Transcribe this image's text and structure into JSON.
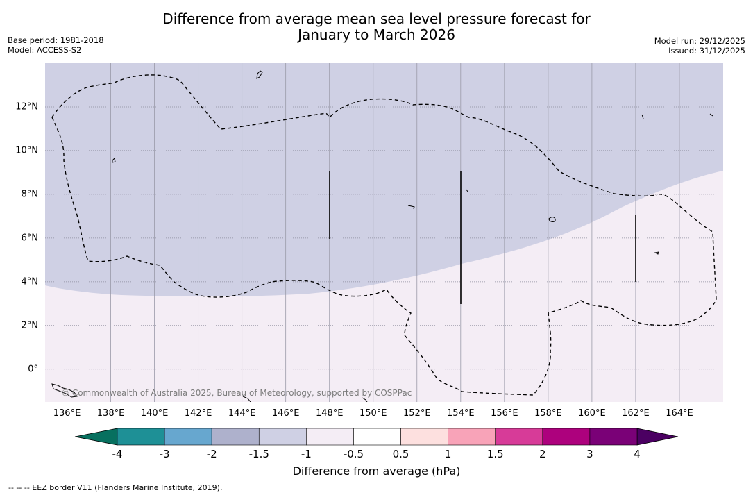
{
  "title": {
    "line1": "Difference from average mean sea level pressure forecast for",
    "line2": "January to March 2026"
  },
  "meta_left": {
    "base_period": "Base period: 1981-2018",
    "model": "Model: ACCESS-S2"
  },
  "meta_right": {
    "model_run": "Model run: 29/12/2025",
    "issued": "Issued: 31/12/2025"
  },
  "map": {
    "lon_range": [
      135,
      166
    ],
    "lat_range": [
      -1.5,
      14
    ],
    "x_ticks": [
      "136°E",
      "138°E",
      "140°E",
      "142°E",
      "144°E",
      "146°E",
      "148°E",
      "150°E",
      "152°E",
      "154°E",
      "156°E",
      "158°E",
      "160°E",
      "162°E",
      "164°E"
    ],
    "x_tick_values": [
      136,
      138,
      140,
      142,
      144,
      146,
      148,
      150,
      152,
      154,
      156,
      158,
      160,
      162,
      164
    ],
    "y_ticks": [
      "12°N",
      "10°N",
      "8°N",
      "6°N",
      "4°N",
      "2°N",
      "0°"
    ],
    "y_tick_values": [
      12,
      10,
      8,
      6,
      4,
      2,
      0
    ],
    "upper_region_color": "#cfd0e4",
    "lower_region_color": "#f4edf5",
    "copyright": "© Commonwealth of Australia 2025, Bureau of Meteorology, supported by COSPPac"
  },
  "colorbar": {
    "labels": [
      "-4",
      "-3",
      "-2",
      "-1.5",
      "-1",
      "-0.5",
      "0.5",
      "1",
      "1.5",
      "2",
      "3",
      "4"
    ],
    "colors": [
      "#1e9096",
      "#67a7cf",
      "#aeb1cc",
      "#cfd0e4",
      "#f4edf5",
      "#ffffff",
      "#fde0df",
      "#f8a3b8",
      "#d73b98",
      "#ad017d",
      "#7a0177"
    ],
    "under_color": "#07705f",
    "over_color": "#4b0062",
    "axis_label": "Difference from average (hPa)"
  },
  "footnote": "-- -- -- EEZ border V11 (Flanders Marine Institute, 2019)."
}
